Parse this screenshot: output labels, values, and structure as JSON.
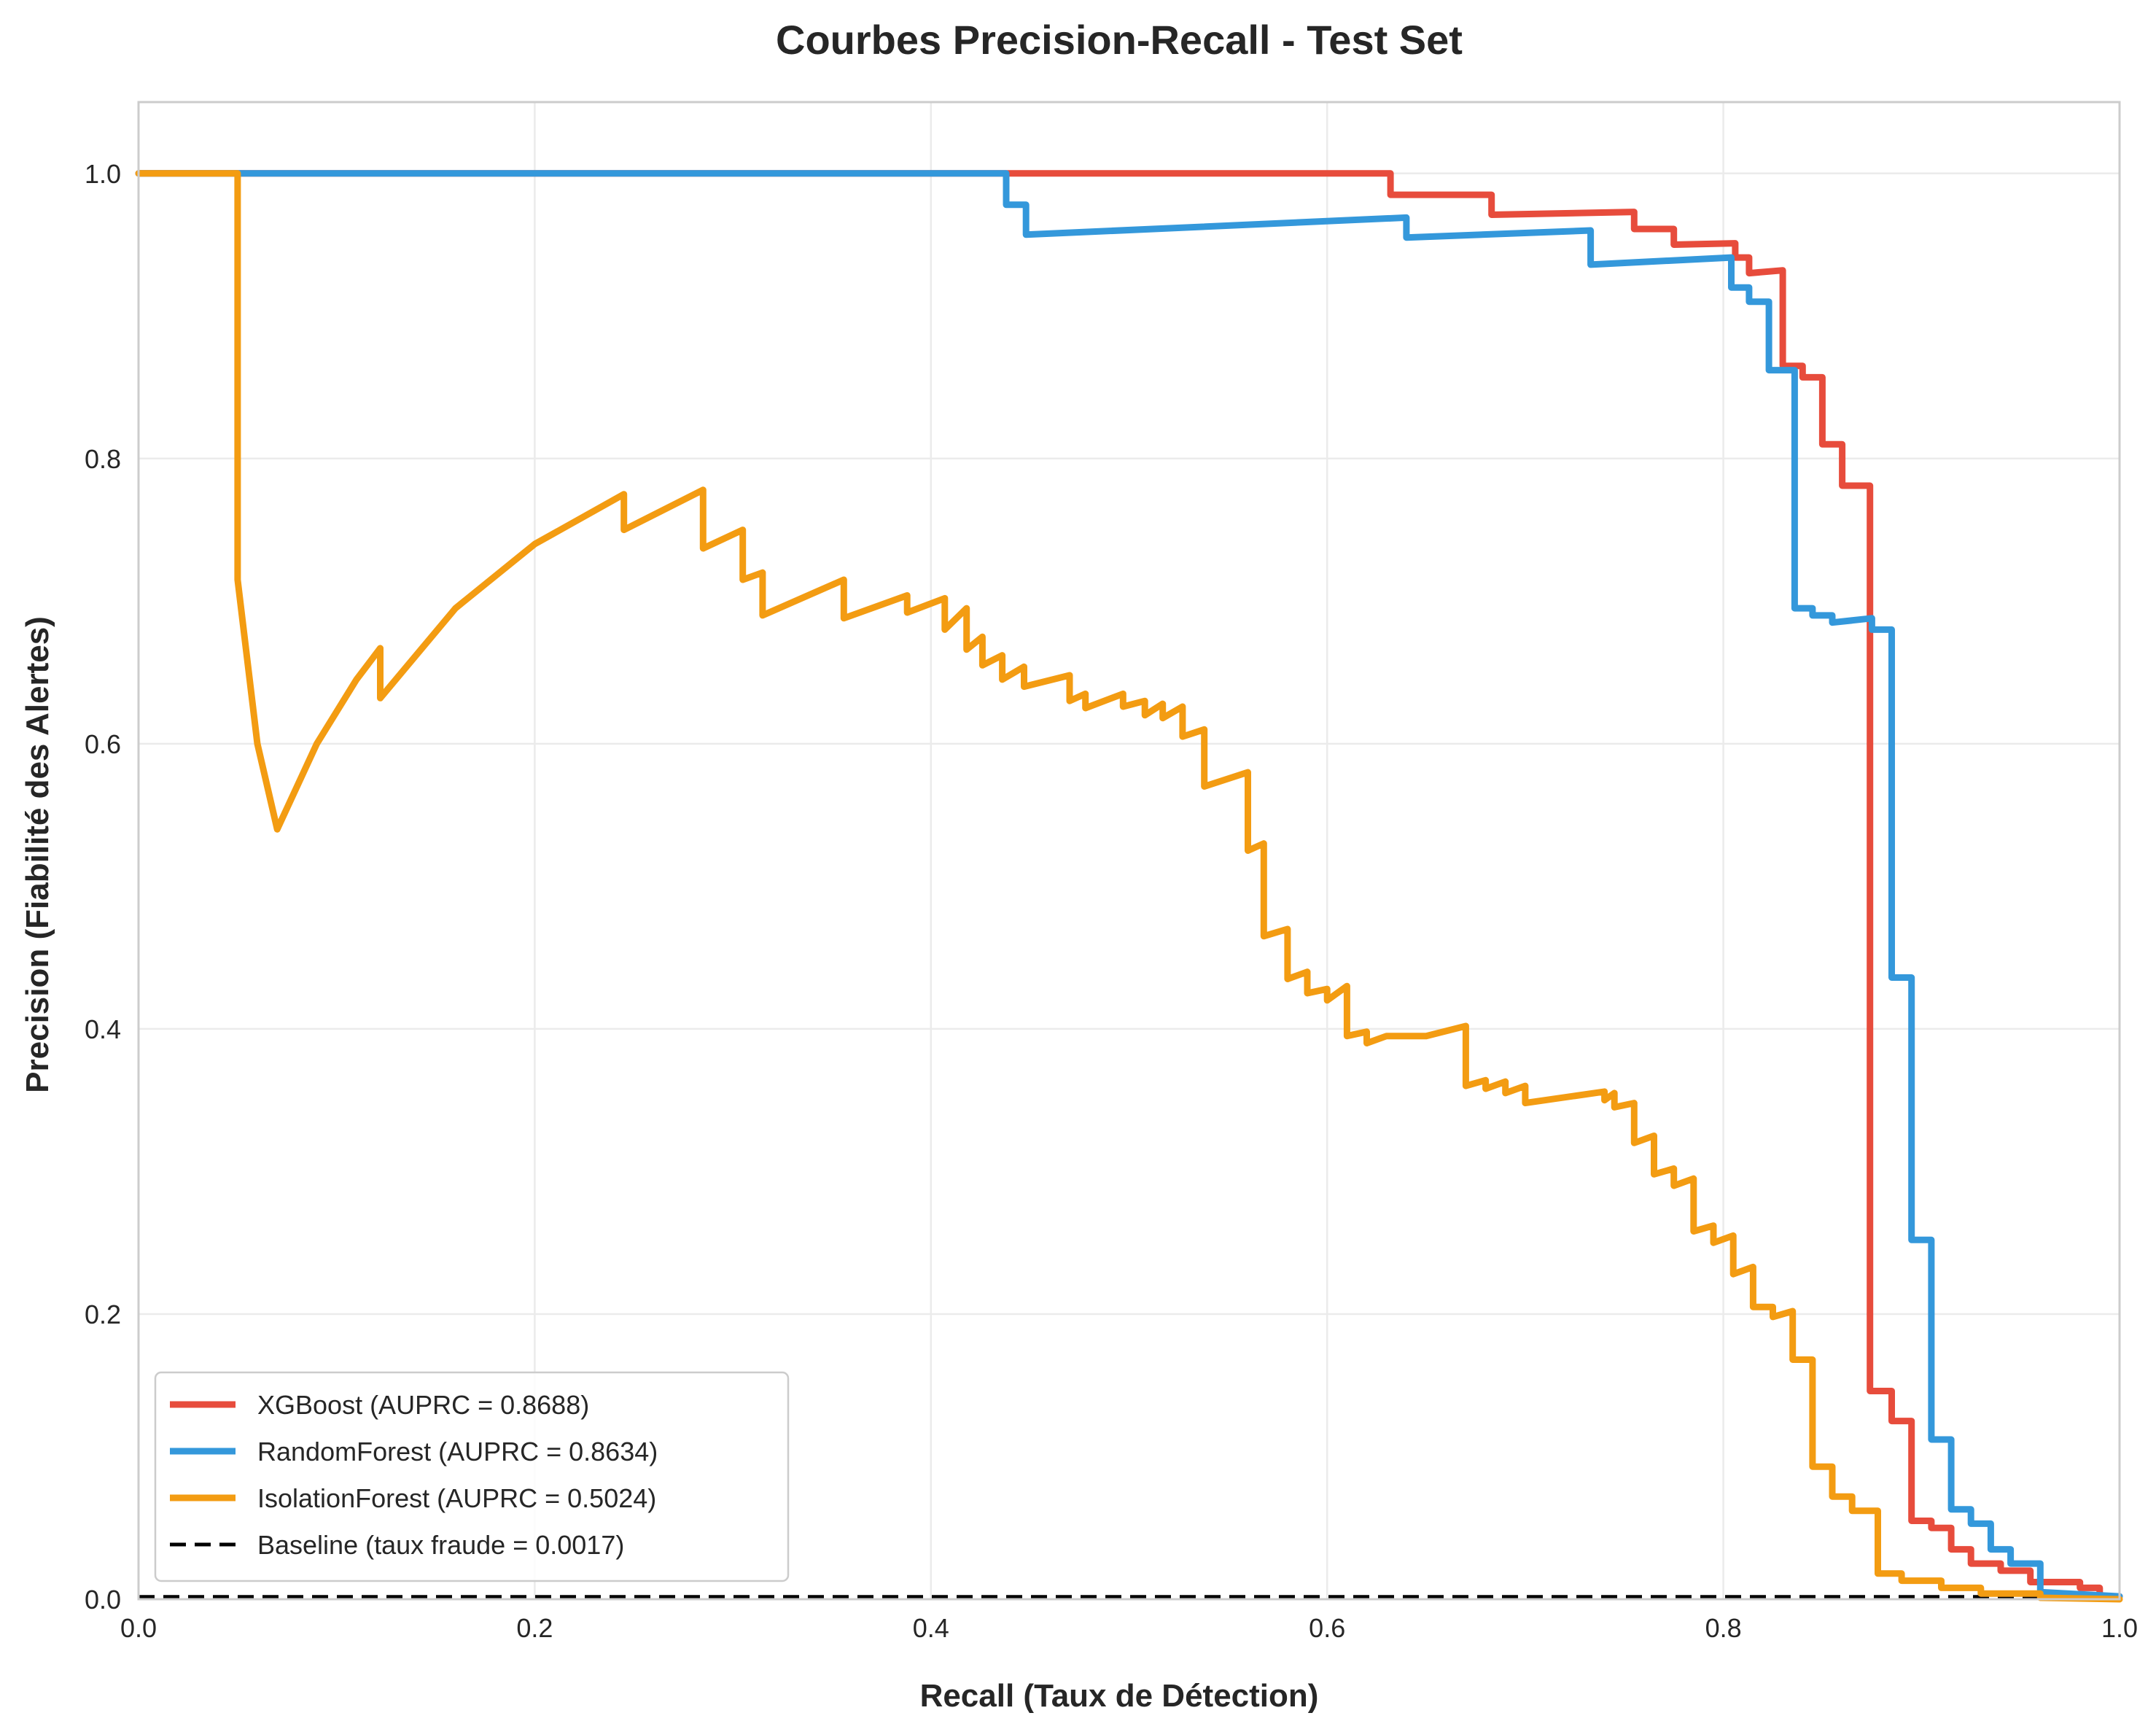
{
  "chart_data": {
    "type": "line",
    "title": "Courbes Precision-Recall - Test Set",
    "xlabel": "Recall (Taux de Détection)",
    "ylabel": "Precision (Fiabilité des Alertes)",
    "xlim": [
      0.0,
      1.0
    ],
    "ylim": [
      0.0,
      1.05
    ],
    "xticks": [
      0.0,
      0.2,
      0.4,
      0.6,
      0.8,
      1.0
    ],
    "xtick_labels": [
      "0.0",
      "0.2",
      "0.4",
      "0.6",
      "0.8",
      "1.0"
    ],
    "yticks": [
      0.0,
      0.2,
      0.4,
      0.6,
      0.8,
      1.0
    ],
    "ytick_labels": [
      "0.0",
      "0.2",
      "0.4",
      "0.6",
      "0.8",
      "1.0"
    ],
    "grid": true,
    "legend_position": "lower-left",
    "series": [
      {
        "name": "XGBoost (AUPRC = 0.8688)",
        "color": "#e74c3c",
        "style": "solid",
        "points": [
          [
            0,
            1.0
          ],
          [
            0.632,
            1.0
          ],
          [
            0.632,
            0.985
          ],
          [
            0.683,
            0.985
          ],
          [
            0.683,
            0.971
          ],
          [
            0.755,
            0.973
          ],
          [
            0.755,
            0.961
          ],
          [
            0.775,
            0.961
          ],
          [
            0.775,
            0.95
          ],
          [
            0.806,
            0.951
          ],
          [
            0.806,
            0.941
          ],
          [
            0.813,
            0.941
          ],
          [
            0.813,
            0.93
          ],
          [
            0.83,
            0.932
          ],
          [
            0.83,
            0.865
          ],
          [
            0.84,
            0.865
          ],
          [
            0.84,
            0.857
          ],
          [
            0.85,
            0.857
          ],
          [
            0.85,
            0.81
          ],
          [
            0.86,
            0.81
          ],
          [
            0.86,
            0.781
          ],
          [
            0.874,
            0.781
          ],
          [
            0.874,
            0.146
          ],
          [
            0.885,
            0.146
          ],
          [
            0.885,
            0.125
          ],
          [
            0.895,
            0.125
          ],
          [
            0.895,
            0.055
          ],
          [
            0.905,
            0.055
          ],
          [
            0.905,
            0.05
          ],
          [
            0.915,
            0.05
          ],
          [
            0.915,
            0.035
          ],
          [
            0.925,
            0.035
          ],
          [
            0.925,
            0.025
          ],
          [
            0.94,
            0.025
          ],
          [
            0.94,
            0.02
          ],
          [
            0.955,
            0.02
          ],
          [
            0.955,
            0.012
          ],
          [
            0.98,
            0.012
          ],
          [
            0.98,
            0.008
          ],
          [
            0.99,
            0.008
          ],
          [
            0.99,
            0.002
          ],
          [
            1.0,
            0.002
          ]
        ]
      },
      {
        "name": "RandomForest (AUPRC = 0.8634)",
        "color": "#3498db",
        "style": "solid",
        "points": [
          [
            0,
            1.0
          ],
          [
            0.438,
            1.0
          ],
          [
            0.438,
            0.978
          ],
          [
            0.448,
            0.978
          ],
          [
            0.448,
            0.957
          ],
          [
            0.64,
            0.969
          ],
          [
            0.64,
            0.955
          ],
          [
            0.733,
            0.96
          ],
          [
            0.733,
            0.936
          ],
          [
            0.804,
            0.941
          ],
          [
            0.804,
            0.92
          ],
          [
            0.813,
            0.92
          ],
          [
            0.813,
            0.91
          ],
          [
            0.823,
            0.91
          ],
          [
            0.823,
            0.862
          ],
          [
            0.836,
            0.862
          ],
          [
            0.836,
            0.695
          ],
          [
            0.845,
            0.695
          ],
          [
            0.845,
            0.69
          ],
          [
            0.855,
            0.69
          ],
          [
            0.855,
            0.685
          ],
          [
            0.875,
            0.688
          ],
          [
            0.875,
            0.68
          ],
          [
            0.885,
            0.68
          ],
          [
            0.885,
            0.436
          ],
          [
            0.895,
            0.436
          ],
          [
            0.895,
            0.252
          ],
          [
            0.905,
            0.252
          ],
          [
            0.905,
            0.112
          ],
          [
            0.915,
            0.112
          ],
          [
            0.915,
            0.063
          ],
          [
            0.925,
            0.063
          ],
          [
            0.925,
            0.053
          ],
          [
            0.935,
            0.053
          ],
          [
            0.935,
            0.035
          ],
          [
            0.945,
            0.035
          ],
          [
            0.945,
            0.025
          ],
          [
            0.96,
            0.025
          ],
          [
            0.96,
            0.005
          ],
          [
            1.0,
            0.002
          ]
        ]
      },
      {
        "name": "IsolationForest (AUPRC = 0.5024)",
        "color": "#f39c12",
        "style": "solid",
        "points": [
          [
            0,
            1.0
          ],
          [
            0.05,
            1.0
          ],
          [
            0.05,
            0.715
          ],
          [
            0.06,
            0.6
          ],
          [
            0.07,
            0.54
          ],
          [
            0.09,
            0.6
          ],
          [
            0.11,
            0.645
          ],
          [
            0.122,
            0.667
          ],
          [
            0.122,
            0.632
          ],
          [
            0.16,
            0.695
          ],
          [
            0.2,
            0.74
          ],
          [
            0.245,
            0.775
          ],
          [
            0.245,
            0.75
          ],
          [
            0.285,
            0.778
          ],
          [
            0.285,
            0.737
          ],
          [
            0.305,
            0.75
          ],
          [
            0.305,
            0.715
          ],
          [
            0.315,
            0.72
          ],
          [
            0.315,
            0.69
          ],
          [
            0.356,
            0.715
          ],
          [
            0.356,
            0.688
          ],
          [
            0.388,
            0.704
          ],
          [
            0.388,
            0.692
          ],
          [
            0.407,
            0.702
          ],
          [
            0.407,
            0.68
          ],
          [
            0.418,
            0.695
          ],
          [
            0.418,
            0.666
          ],
          [
            0.426,
            0.675
          ],
          [
            0.426,
            0.655
          ],
          [
            0.436,
            0.662
          ],
          [
            0.436,
            0.645
          ],
          [
            0.447,
            0.654
          ],
          [
            0.447,
            0.64
          ],
          [
            0.47,
            0.648
          ],
          [
            0.47,
            0.63
          ],
          [
            0.478,
            0.635
          ],
          [
            0.478,
            0.625
          ],
          [
            0.497,
            0.635
          ],
          [
            0.497,
            0.626
          ],
          [
            0.508,
            0.63
          ],
          [
            0.508,
            0.62
          ],
          [
            0.517,
            0.628
          ],
          [
            0.517,
            0.618
          ],
          [
            0.527,
            0.626
          ],
          [
            0.527,
            0.605
          ],
          [
            0.538,
            0.61
          ],
          [
            0.538,
            0.57
          ],
          [
            0.56,
            0.58
          ],
          [
            0.56,
            0.525
          ],
          [
            0.568,
            0.53
          ],
          [
            0.568,
            0.465
          ],
          [
            0.58,
            0.47
          ],
          [
            0.58,
            0.435
          ],
          [
            0.59,
            0.44
          ],
          [
            0.59,
            0.425
          ],
          [
            0.6,
            0.428
          ],
          [
            0.6,
            0.42
          ],
          [
            0.61,
            0.43
          ],
          [
            0.61,
            0.395
          ],
          [
            0.62,
            0.398
          ],
          [
            0.62,
            0.39
          ],
          [
            0.63,
            0.395
          ],
          [
            0.65,
            0.395
          ],
          [
            0.67,
            0.402
          ],
          [
            0.67,
            0.36
          ],
          [
            0.68,
            0.364
          ],
          [
            0.68,
            0.358
          ],
          [
            0.69,
            0.363
          ],
          [
            0.69,
            0.355
          ],
          [
            0.7,
            0.36
          ],
          [
            0.7,
            0.348
          ],
          [
            0.74,
            0.356
          ],
          [
            0.74,
            0.35
          ],
          [
            0.745,
            0.355
          ],
          [
            0.745,
            0.345
          ],
          [
            0.755,
            0.348
          ],
          [
            0.755,
            0.32
          ],
          [
            0.765,
            0.325
          ],
          [
            0.765,
            0.298
          ],
          [
            0.775,
            0.302
          ],
          [
            0.775,
            0.29
          ],
          [
            0.785,
            0.295
          ],
          [
            0.785,
            0.258
          ],
          [
            0.795,
            0.262
          ],
          [
            0.795,
            0.25
          ],
          [
            0.805,
            0.255
          ],
          [
            0.805,
            0.228
          ],
          [
            0.815,
            0.233
          ],
          [
            0.815,
            0.205
          ],
          [
            0.825,
            0.205
          ],
          [
            0.825,
            0.198
          ],
          [
            0.835,
            0.202
          ],
          [
            0.835,
            0.168
          ],
          [
            0.845,
            0.168
          ],
          [
            0.845,
            0.093
          ],
          [
            0.855,
            0.093
          ],
          [
            0.855,
            0.072
          ],
          [
            0.865,
            0.072
          ],
          [
            0.865,
            0.062
          ],
          [
            0.878,
            0.062
          ],
          [
            0.878,
            0.018
          ],
          [
            0.89,
            0.018
          ],
          [
            0.89,
            0.013
          ],
          [
            0.91,
            0.013
          ],
          [
            0.91,
            0.008
          ],
          [
            0.93,
            0.008
          ],
          [
            0.93,
            0.004
          ],
          [
            0.96,
            0.004
          ],
          [
            0.96,
            0.001
          ],
          [
            1.0,
            0.0
          ]
        ]
      },
      {
        "name": "Baseline (taux fraude = 0.0017)",
        "color": "#000000",
        "style": "dashed",
        "points": [
          [
            0,
            0.0017
          ],
          [
            1.0,
            0.0017
          ]
        ]
      }
    ]
  }
}
